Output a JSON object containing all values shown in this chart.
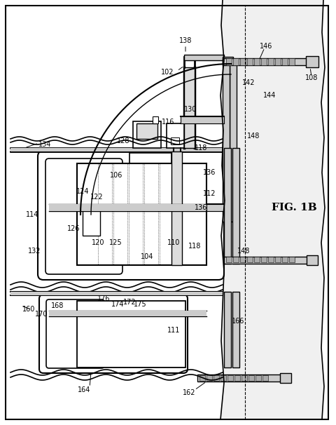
{
  "fig_label": "FIG. 1B",
  "bg_color": "#ffffff",
  "lc": "#000000",
  "gray1": "#cccccc",
  "gray2": "#aaaaaa",
  "gray_light": "#e8e8e8"
}
